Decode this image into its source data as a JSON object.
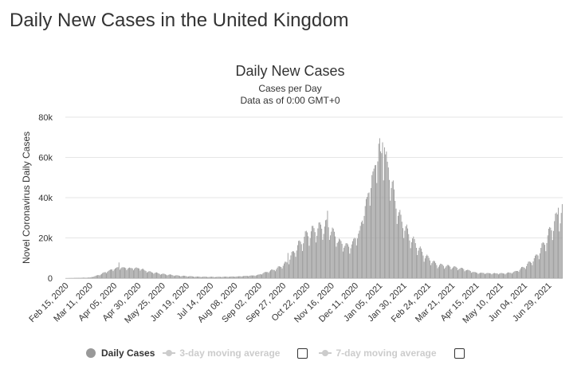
{
  "page_title": "Daily New Cases in the United Kingdom",
  "legend": {
    "daily_cases": "Daily Cases",
    "avg3": "3-day moving average",
    "avg7": "7-day moving average"
  },
  "colors": {
    "bar": "#999999",
    "grid": "#e6e6e6",
    "text": "#333333",
    "legend_off": "#cccccc"
  },
  "chart_data": {
    "type": "bar",
    "title": "Daily New Cases",
    "subtitle": "Cases per Day",
    "subtitle2": "Data as of 0:00 GMT+0",
    "ylabel": "Novel Coronavirus Daily Cases",
    "xlabel": "",
    "ylim": [
      0,
      80000
    ],
    "yticks": [
      0,
      20000,
      40000,
      60000,
      80000
    ],
    "ytick_labels": [
      "0",
      "20k",
      "40k",
      "60k",
      "80k"
    ],
    "x_start": "2020-02-15",
    "x_end": "2021-07-13",
    "xtick_labels": [
      "Feb 15, 2020",
      "Mar 11, 2020",
      "Apr 05, 2020",
      "Apr 30, 2020",
      "May 25, 2020",
      "Jun 19, 2020",
      "Jul 14, 2020",
      "Aug 08, 2020",
      "Sep 02, 2020",
      "Sep 27, 2020",
      "Oct 22, 2020",
      "Nov 16, 2020",
      "Dec 11, 2020",
      "Jan 05, 2021",
      "Jan 30, 2021",
      "Feb 24, 2021",
      "Mar 21, 2021",
      "Apr 15, 2021",
      "May 10, 2021",
      "Jun 04, 2021",
      "Jun 29, 2021"
    ],
    "grid": true,
    "legend_position": "bottom",
    "series": [
      {
        "name": "Daily Cases",
        "keypoints": [
          [
            "2020-02-15",
            0
          ],
          [
            "2020-03-11",
            300
          ],
          [
            "2020-03-20",
            1500
          ],
          [
            "2020-03-30",
            3500
          ],
          [
            "2020-04-05",
            4500
          ],
          [
            "2020-04-10",
            5200
          ],
          [
            "2020-04-20",
            4800
          ],
          [
            "2020-05-01",
            4800
          ],
          [
            "2020-05-10",
            3200
          ],
          [
            "2020-05-25",
            2000
          ],
          [
            "2020-06-10",
            1200
          ],
          [
            "2020-06-30",
            700
          ],
          [
            "2020-07-20",
            600
          ],
          [
            "2020-08-10",
            800
          ],
          [
            "2020-08-31",
            1400
          ],
          [
            "2020-09-10",
            3000
          ],
          [
            "2020-09-20",
            4500
          ],
          [
            "2020-10-01",
            7500
          ],
          [
            "2020-10-10",
            14000
          ],
          [
            "2020-10-22",
            21000
          ],
          [
            "2020-11-01",
            23500
          ],
          [
            "2020-11-12",
            25500
          ],
          [
            "2020-11-25",
            17000
          ],
          [
            "2020-12-05",
            15000
          ],
          [
            "2020-12-15",
            22000
          ],
          [
            "2020-12-22",
            36000
          ],
          [
            "2020-12-29",
            50000
          ],
          [
            "2021-01-04",
            62000
          ],
          [
            "2021-01-09",
            60000
          ],
          [
            "2021-01-15",
            50000
          ],
          [
            "2021-01-25",
            30000
          ],
          [
            "2021-02-05",
            20000
          ],
          [
            "2021-02-20",
            11000
          ],
          [
            "2021-03-05",
            6500
          ],
          [
            "2021-03-20",
            5500
          ],
          [
            "2021-04-01",
            4500
          ],
          [
            "2021-04-15",
            2600
          ],
          [
            "2021-05-01",
            2300
          ],
          [
            "2021-05-15",
            2300
          ],
          [
            "2021-05-25",
            3000
          ],
          [
            "2021-06-04",
            5500
          ],
          [
            "2021-06-15",
            9500
          ],
          [
            "2021-06-25",
            17000
          ],
          [
            "2021-07-05",
            27000
          ],
          [
            "2021-07-13",
            32000
          ]
        ],
        "spikes": [
          [
            "2020-04-10",
            7800
          ],
          [
            "2020-10-02",
            12500
          ],
          [
            "2020-11-12",
            33500
          ],
          [
            "2020-12-19",
            27000
          ],
          [
            "2020-12-29",
            53000
          ],
          [
            "2021-01-03",
            58000
          ],
          [
            "2021-01-06",
            63000
          ],
          [
            "2021-01-08",
            67500
          ],
          [
            "2021-01-10",
            65000
          ],
          [
            "2021-01-14",
            55000
          ],
          [
            "2021-07-09",
            35000
          ]
        ]
      }
    ]
  }
}
